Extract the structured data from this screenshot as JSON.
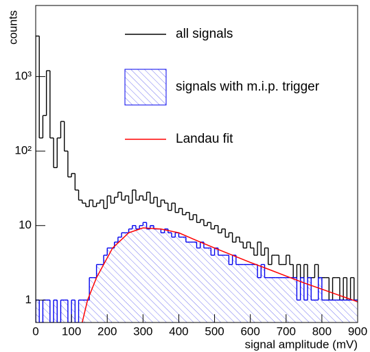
{
  "chart_data": {
    "type": "histogram",
    "ylabel": "counts",
    "xlabel": "signal amplitude (mV)",
    "log_y": true,
    "xlim": [
      0,
      900
    ],
    "ylim": [
      0.5,
      9000
    ],
    "xticks": [
      0,
      100,
      200,
      300,
      400,
      500,
      600,
      700,
      800,
      900
    ],
    "yticks": [
      1,
      10,
      {
        "value": 100,
        "label": "10²"
      },
      {
        "value": 1000,
        "label": "10³"
      }
    ],
    "bins": [
      0,
      10,
      20,
      30,
      40,
      50,
      60,
      70,
      80,
      90,
      100,
      110,
      120,
      130,
      140,
      150,
      160,
      170,
      180,
      190,
      200,
      210,
      220,
      230,
      240,
      250,
      260,
      270,
      280,
      290,
      300,
      310,
      320,
      330,
      340,
      350,
      360,
      370,
      380,
      390,
      400,
      410,
      420,
      430,
      440,
      450,
      460,
      470,
      480,
      490,
      500,
      510,
      520,
      530,
      540,
      550,
      560,
      570,
      580,
      590,
      600,
      610,
      620,
      630,
      640,
      650,
      660,
      670,
      680,
      690,
      700,
      710,
      720,
      730,
      740,
      750,
      760,
      770,
      780,
      790,
      800,
      810,
      820,
      830,
      840,
      850,
      860,
      870,
      880,
      890,
      900
    ],
    "series": [
      {
        "name": "all signals",
        "type": "histogram",
        "color": "#000000",
        "values": [
          3500,
          150,
          300,
          1200,
          150,
          60,
          150,
          250,
          100,
          45,
          50,
          30,
          22,
          20,
          18,
          22,
          18,
          20,
          22,
          17,
          25,
          20,
          24,
          28,
          22,
          25,
          20,
          30,
          22,
          25,
          22,
          28,
          20,
          24,
          18,
          22,
          20,
          16,
          20,
          15,
          17,
          14,
          15,
          12,
          14,
          11,
          12,
          10,
          11,
          9,
          10,
          8,
          9,
          7,
          8,
          6,
          7,
          6,
          5,
          6,
          5,
          4,
          6,
          4,
          5,
          3,
          4,
          4,
          3,
          3,
          4,
          3,
          2,
          3,
          2,
          3,
          2,
          2,
          3,
          2,
          2,
          2,
          1,
          2,
          2,
          1,
          2,
          1,
          2,
          1
        ]
      },
      {
        "name": "signals with m.i.p. trigger",
        "type": "histogram",
        "color": "#0000ee",
        "hatched": true,
        "values": [
          1,
          0,
          1,
          1,
          0,
          1,
          0,
          1,
          1,
          0,
          1,
          0,
          1,
          1,
          1,
          2,
          2,
          3,
          3,
          4,
          5,
          5,
          6,
          7,
          8,
          8,
          9,
          10,
          9,
          10,
          11,
          9,
          10,
          9,
          9,
          8,
          9,
          8,
          7,
          8,
          7,
          7,
          6,
          6,
          6,
          5,
          6,
          5,
          5,
          4,
          5,
          4,
          4,
          4,
          3,
          4,
          3,
          3,
          3,
          3,
          3,
          3,
          2,
          3,
          2,
          2,
          2,
          2,
          2,
          2,
          2,
          2,
          2,
          1,
          2,
          1,
          2,
          1,
          1,
          2,
          1,
          1,
          1,
          1,
          1,
          1,
          1,
          1,
          1,
          1
        ]
      },
      {
        "name": "Landau fit",
        "type": "line",
        "color": "#ff0000",
        "x": [
          130,
          145,
          170,
          215,
          260,
          300,
          350,
          400,
          450,
          500,
          550,
          600,
          650,
          700,
          750,
          800,
          850,
          900
        ],
        "values": [
          0.5,
          1,
          2,
          5,
          8,
          9.3,
          9,
          8,
          6.3,
          5,
          4,
          3.2,
          2.6,
          2.1,
          1.7,
          1.4,
          1.15,
          0.95
        ]
      }
    ]
  }
}
